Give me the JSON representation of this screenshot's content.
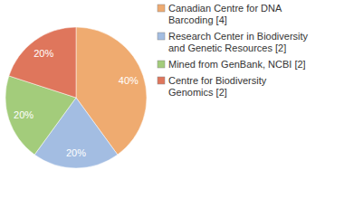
{
  "chart_data": {
    "type": "pie",
    "categories": [
      "Canadian Centre for DNA Barcoding [4]",
      "Research Center in Biodiversity and Genetic Resources [2]",
      "Mined from GenBank, NCBI [2]",
      "Centre for Biodiversity Genomics [2]"
    ],
    "values": [
      40,
      20,
      20,
      20
    ],
    "value_labels": [
      "40%",
      "20%",
      "20%",
      "20%"
    ],
    "colors": [
      "#efab70",
      "#a3bde2",
      "#a3cc7b",
      "#df765c"
    ],
    "data_labels": true,
    "legend": "right"
  }
}
